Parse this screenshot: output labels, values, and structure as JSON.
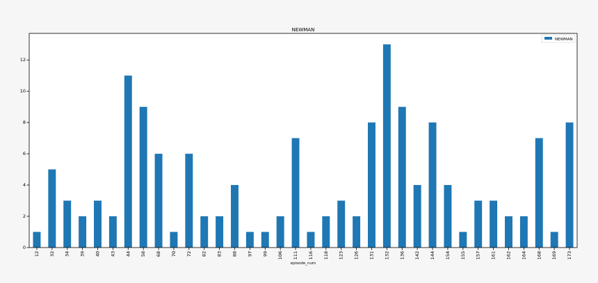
{
  "chart_data": {
    "type": "bar",
    "title": "NEWMAN",
    "xlabel": "episode_num",
    "ylabel": "",
    "ylim": [
      0,
      13.7
    ],
    "yticks": [
      0,
      2,
      4,
      6,
      8,
      10,
      12
    ],
    "grid": false,
    "legend_position": "top-right",
    "categories": [
      "12",
      "32",
      "34",
      "39",
      "40",
      "43",
      "44",
      "58",
      "68",
      "70",
      "72",
      "82",
      "83",
      "88",
      "97",
      "99",
      "106",
      "111",
      "116",
      "118",
      "123",
      "126",
      "131",
      "132",
      "136",
      "142",
      "144",
      "154",
      "155",
      "157",
      "161",
      "162",
      "164",
      "168",
      "169",
      "173"
    ],
    "series": [
      {
        "name": "NEWMAN",
        "color": "#1f77b4",
        "values": [
          1,
          5,
          3,
          2,
          3,
          2,
          11,
          9,
          6,
          1,
          6,
          2,
          2,
          4,
          1,
          1,
          2,
          7,
          1,
          2,
          3,
          2,
          8,
          13,
          9,
          4,
          8,
          4,
          1,
          3,
          3,
          2,
          2,
          7,
          1,
          8
        ]
      }
    ]
  }
}
